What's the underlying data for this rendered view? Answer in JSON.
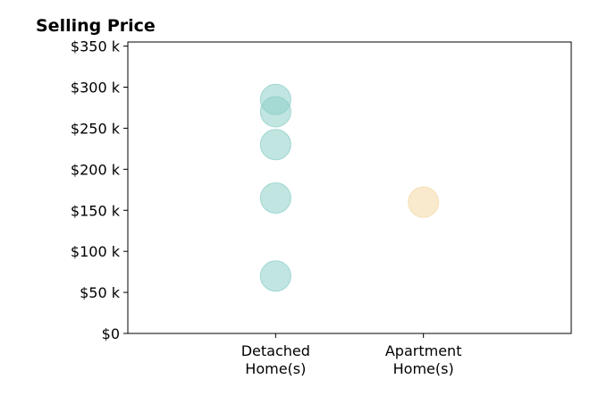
{
  "chart_data": {
    "type": "scatter",
    "title": "Selling Price",
    "xlabel": "",
    "ylabel": "",
    "categories": [
      [
        "Detached",
        "Home(s)"
      ],
      [
        "Apartment",
        "Home(s)"
      ]
    ],
    "yticks": [
      "$0",
      "$50 k",
      "$100 k",
      "$150 k",
      "$200 k",
      "$250 k",
      "$300 k",
      "$350 k"
    ],
    "ytick_values": [
      0,
      50,
      100,
      150,
      200,
      250,
      300,
      350
    ],
    "ylim": [
      0,
      355
    ],
    "xlim": [
      -1,
      2
    ],
    "grid": false,
    "series": [
      {
        "category_index": 0,
        "color": "#8ecfc9",
        "values": [
          285,
          270,
          230,
          165,
          70
        ]
      },
      {
        "category_index": 1,
        "color": "#f4d9a6",
        "values": [
          160
        ]
      }
    ]
  }
}
